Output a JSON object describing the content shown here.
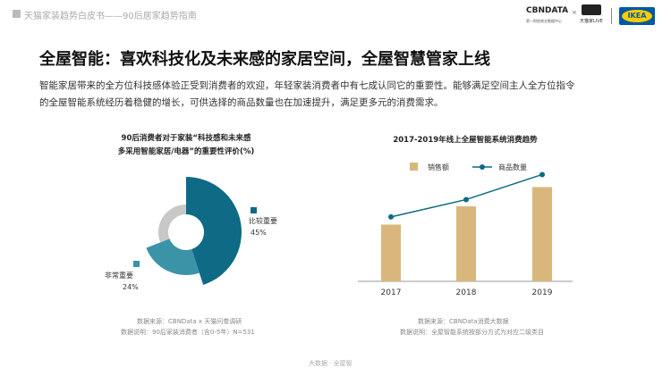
{
  "header": {
    "title": "天猫家装趋势白皮书——90后居家趋势指南",
    "brand_cbn": "CBNDATA",
    "brand_cbn_sub": "第一财经商业数据中心",
    "times": "×",
    "brand_tmall": "天猫家LIVE",
    "brand_ikea": "IKEA"
  },
  "main": {
    "title": "全屋智能：喜欢科技化及未来感的家居空间，全屋智慧管家上线",
    "paragraph": [
      "智能家居带来的全方位科技感体验正受到消费者的欢迎，年轻家装消费者中有七成认同它的重要性。能够满足空间主人全方位指令",
      "的全屋智能系统经历着稳健的增长，可供选择的商品数量也在加速提升，满足更多元的消费需求。"
    ]
  },
  "footer": {
    "label": "大数据 · 全屋智"
  },
  "chart_data": [
    {
      "type": "pie",
      "title": [
        "90后消费者对于家装“科技感和未来感",
        "多采用智能家居/电器”的重要性评价(%)"
      ],
      "slices": [
        {
          "label": "比较重要",
          "value": 45,
          "pct": "45%",
          "color": "#0e6a85"
        },
        {
          "label": "非常重要",
          "value": 24,
          "pct": "24%",
          "color": "#3b93a8"
        },
        {
          "label": "",
          "value": 31,
          "pct": "",
          "color": "#c8c8c8"
        }
      ],
      "notes": [
        "数据来源：CBNData x 天猫问卷调研",
        "数据说明：90后家装消费者（含0-5年）N=531"
      ]
    },
    {
      "type": "bar",
      "title": "2017-2019年线上全屋智能系统消费趋势",
      "categories": [
        "2017",
        "2018",
        "2019"
      ],
      "series": [
        {
          "name": "销售额",
          "kind": "bar",
          "values": [
            59,
            78,
            98
          ],
          "color": "#d9b77c"
        },
        {
          "name": "商品数量",
          "kind": "line",
          "values": [
            67,
            85,
            111
          ],
          "color": "#0e6a85"
        }
      ],
      "ylim": [
        0,
        130
      ],
      "grid": false,
      "legend": "top",
      "notes": [
        "数据来源：CBNData消费大数据",
        "数据说明：全屋智能系统按部分方式为对应二级类目"
      ]
    }
  ]
}
